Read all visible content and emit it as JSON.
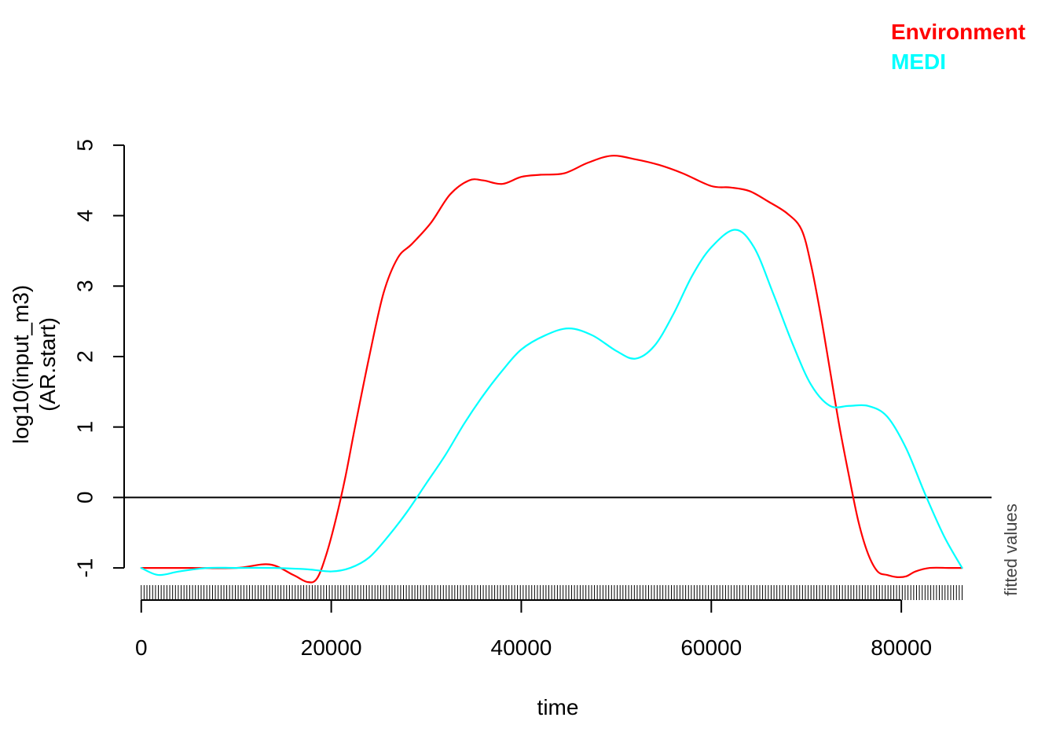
{
  "chart_data": {
    "type": "line",
    "title": "",
    "xlabel": "time",
    "ylabel": [
      "log10(input_m3)",
      "(AR.start)"
    ],
    "side_note": "fitted values",
    "xlim": [
      -1800,
      89500
    ],
    "ylim": [
      -1.3,
      5.5
    ],
    "x_ticks": [
      0,
      20000,
      40000,
      60000,
      80000
    ],
    "x_tick_labels": [
      "0",
      "20000",
      "40000",
      "60000",
      "80000"
    ],
    "y_ticks": [
      -1,
      0,
      1,
      2,
      3,
      4,
      5
    ],
    "y_tick_labels": [
      "-1",
      "0",
      "1",
      "2",
      "3",
      "4",
      "5"
    ],
    "hline": 0,
    "rug": {
      "from": 0,
      "to": 86400,
      "step": 300
    },
    "grid": false,
    "legend_position": "top-right",
    "series": [
      {
        "name": "Environment",
        "color": "#ff0000",
        "x": [
          0,
          5000,
          10000,
          13500,
          16000,
          17500,
          18500,
          19500,
          20500,
          21500,
          22500,
          24000,
          25500,
          27000,
          28500,
          30500,
          32500,
          34500,
          36000,
          38000,
          40000,
          42000,
          44500,
          47000,
          49500,
          52000,
          54500,
          57000,
          60000,
          62000,
          64000,
          66000,
          68000,
          69500,
          70500,
          71500,
          72500,
          73500,
          74500,
          75500,
          76500,
          77500,
          78500,
          79500,
          80500,
          81500,
          83000,
          85000,
          86400
        ],
        "y": [
          -1.0,
          -1.0,
          -1.0,
          -0.95,
          -1.1,
          -1.2,
          -1.15,
          -0.8,
          -0.3,
          0.3,
          1.0,
          2.0,
          2.9,
          3.4,
          3.6,
          3.9,
          4.3,
          4.5,
          4.5,
          4.45,
          4.55,
          4.58,
          4.6,
          4.75,
          4.85,
          4.8,
          4.72,
          4.6,
          4.42,
          4.4,
          4.35,
          4.2,
          4.03,
          3.8,
          3.3,
          2.6,
          1.8,
          1.0,
          0.3,
          -0.35,
          -0.8,
          -1.05,
          -1.1,
          -1.13,
          -1.12,
          -1.05,
          -1.0,
          -1.0,
          -1.0
        ]
      },
      {
        "name": "MEDI",
        "color": "#00ffff",
        "x": [
          0,
          1800,
          4000,
          7000,
          10000,
          14000,
          17500,
          20000,
          22000,
          24000,
          26000,
          28000,
          30000,
          32000,
          34000,
          36000,
          38000,
          40000,
          42500,
          45000,
          47500,
          50000,
          52000,
          54000,
          56000,
          58000,
          60000,
          62500,
          64500,
          66500,
          68500,
          70500,
          72500,
          74500,
          76500,
          78500,
          80500,
          82500,
          84500,
          86400
        ],
        "y": [
          -1.0,
          -1.1,
          -1.05,
          -1.0,
          -1.0,
          -1.0,
          -1.02,
          -1.05,
          -1.0,
          -0.85,
          -0.55,
          -0.2,
          0.2,
          0.6,
          1.05,
          1.45,
          1.8,
          2.1,
          2.3,
          2.4,
          2.3,
          2.08,
          1.97,
          2.15,
          2.6,
          3.15,
          3.55,
          3.8,
          3.55,
          2.9,
          2.2,
          1.6,
          1.3,
          1.3,
          1.3,
          1.15,
          0.7,
          0.05,
          -0.55,
          -1.0
        ]
      }
    ]
  }
}
